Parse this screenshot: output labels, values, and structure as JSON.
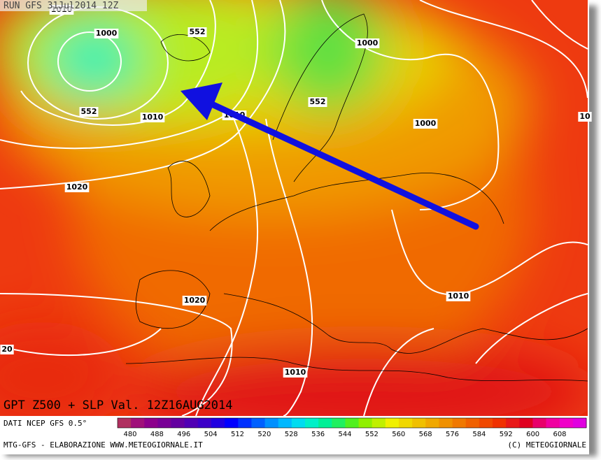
{
  "header": {
    "run": "RUN GFS 31Jul2014 12Z"
  },
  "map": {
    "contour_labels": [
      "1010",
      "1000",
      "552",
      "552",
      "1010",
      "1010",
      "1000",
      "552",
      "1000",
      "10",
      "1020",
      "1020",
      "1010",
      "1010",
      "20"
    ]
  },
  "footer": {
    "title": "GPT Z500 + SLP Val. 12Z16AUG2014",
    "source": "DATI NCEP GFS 0.5°",
    "credit": "MTG-GFS - ELABORAZIONE WWW.METEOGIORNALE.IT",
    "copyright": "(C) METEOGIORNALE"
  },
  "colorbar": {
    "labels": [
      480,
      488,
      496,
      504,
      512,
      520,
      528,
      536,
      544,
      552,
      560,
      568,
      576,
      584,
      592,
      600,
      608
    ],
    "colors": [
      "#b03060",
      "#a0107a",
      "#8c008c",
      "#780096",
      "#6400a0",
      "#5000b4",
      "#3c00c8",
      "#2000e0",
      "#0000ff",
      "#0030ff",
      "#0060ff",
      "#0090ff",
      "#00b8ff",
      "#00dcf0",
      "#00f0c8",
      "#00f096",
      "#20f060",
      "#50f020",
      "#90f000",
      "#c0f000",
      "#f0f000",
      "#f0d800",
      "#f0c000",
      "#f0a800",
      "#f09000",
      "#f07800",
      "#f06000",
      "#f04800",
      "#f03000",
      "#e81818",
      "#e00020",
      "#e8006a",
      "#f000a0",
      "#f000c8",
      "#e000e0"
    ]
  }
}
